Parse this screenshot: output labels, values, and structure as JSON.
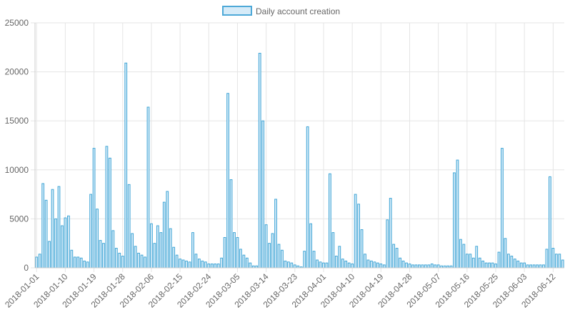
{
  "chart_data": {
    "type": "bar",
    "legend": {
      "label": "Daily account creation",
      "position": "top",
      "fill": "#d6ebf8",
      "stroke": "#4ea9d8"
    },
    "ylim": [
      0,
      25000
    ],
    "yticks": [
      0,
      5000,
      10000,
      15000,
      20000,
      25000
    ],
    "x_tick_labels": [
      "2018-01-01",
      "2018-01-10",
      "2018-01-19",
      "2018-01-28",
      "2018-02-06",
      "2018-02-15",
      "2018-02-24",
      "2018-03-05",
      "2018-03-14",
      "2018-03-23",
      "2018-04-01",
      "2018-04-10",
      "2018-04-19",
      "2018-04-28",
      "2018-05-07",
      "2018-05-16",
      "2018-05-25",
      "2018-06-03",
      "2018-06-12"
    ],
    "start_date": "2018-01-01",
    "grid": true,
    "bar_fill": "#d6ebf8",
    "bar_stroke": "#41a6d6",
    "series": [
      {
        "name": "Daily account creation",
        "values": [
          1100,
          1400,
          8600,
          6900,
          2700,
          8000,
          5000,
          8300,
          4300,
          5100,
          5300,
          1800,
          1100,
          1100,
          1000,
          700,
          600,
          7500,
          12200,
          6000,
          2800,
          2500,
          12400,
          11200,
          3800,
          2000,
          1500,
          1200,
          20900,
          8500,
          3500,
          2200,
          1500,
          1300,
          1100,
          16400,
          4500,
          2500,
          4300,
          3600,
          6700,
          7800,
          4000,
          2100,
          1300,
          900,
          800,
          700,
          600,
          3600,
          1400,
          900,
          700,
          600,
          400,
          400,
          400,
          400,
          1000,
          3100,
          17800,
          9000,
          3600,
          3100,
          1900,
          1300,
          1000,
          500,
          200,
          200,
          21900,
          15000,
          4400,
          2500,
          3500,
          7000,
          2400,
          1800,
          700,
          600,
          500,
          300,
          200,
          100,
          1700,
          14400,
          4500,
          1700,
          800,
          600,
          500,
          500,
          9600,
          3600,
          1200,
          2200,
          900,
          700,
          500,
          400,
          7500,
          6500,
          3900,
          1400,
          800,
          700,
          600,
          500,
          400,
          300,
          4900,
          7100,
          2400,
          2000,
          1000,
          700,
          500,
          400,
          300,
          300,
          300,
          300,
          300,
          300,
          400,
          300,
          300,
          200,
          200,
          200,
          200,
          9700,
          11000,
          2900,
          2400,
          1400,
          1400,
          1000,
          2200,
          1000,
          700,
          500,
          500,
          500,
          400,
          1600,
          12200,
          3000,
          1400,
          1200,
          900,
          700,
          500,
          500,
          300,
          300,
          300,
          300,
          300,
          300,
          1900,
          9300,
          2000,
          1400,
          1400,
          800
        ]
      }
    ]
  }
}
